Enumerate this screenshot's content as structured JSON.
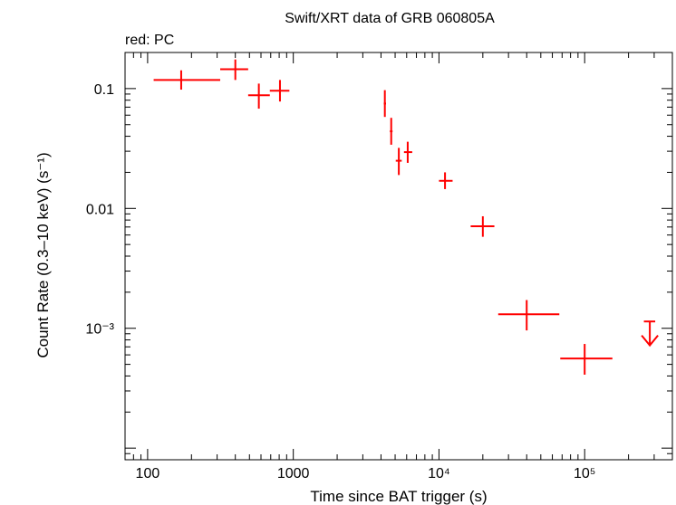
{
  "chart_data": {
    "type": "scatter",
    "title": "Swift/XRT data of GRB 060805A",
    "subtitle": "red: PC",
    "xlabel": "Time since BAT trigger (s)",
    "ylabel": "Count Rate (0.3–10 keV) (s⁻¹)",
    "xscale": "log",
    "yscale": "log",
    "xlim": [
      70,
      400000
    ],
    "ylim": [
      8e-05,
      0.2
    ],
    "x_ticks": [
      {
        "value": 100,
        "label": "100"
      },
      {
        "value": 1000,
        "label": "1000"
      },
      {
        "value": 10000,
        "label": "10⁴"
      },
      {
        "value": 100000,
        "label": "10⁵"
      }
    ],
    "y_ticks": [
      {
        "value": 0.1,
        "label": "0.1"
      },
      {
        "value": 0.01,
        "label": "0.01"
      },
      {
        "value": 0.001,
        "label": "10⁻³"
      }
    ],
    "color": "#ff0000",
    "series": [
      {
        "name": "PC",
        "points": [
          {
            "x": 170,
            "x_lo": 110,
            "x_hi": 315,
            "y": 0.118,
            "y_lo": 0.098,
            "y_hi": 0.142
          },
          {
            "x": 400,
            "x_lo": 315,
            "x_hi": 490,
            "y": 0.145,
            "y_lo": 0.118,
            "y_hi": 0.175
          },
          {
            "x": 580,
            "x_lo": 490,
            "x_hi": 690,
            "y": 0.088,
            "y_lo": 0.068,
            "y_hi": 0.11
          },
          {
            "x": 810,
            "x_lo": 690,
            "x_hi": 940,
            "y": 0.096,
            "y_lo": 0.078,
            "y_hi": 0.118
          },
          {
            "x": 4250,
            "x_lo": 4180,
            "x_hi": 4330,
            "y": 0.075,
            "y_lo": 0.058,
            "y_hi": 0.097
          },
          {
            "x": 4700,
            "x_lo": 4600,
            "x_hi": 4800,
            "y": 0.044,
            "y_lo": 0.034,
            "y_hi": 0.057
          },
          {
            "x": 5300,
            "x_lo": 5050,
            "x_hi": 5550,
            "y": 0.025,
            "y_lo": 0.019,
            "y_hi": 0.032
          },
          {
            "x": 6100,
            "x_lo": 5750,
            "x_hi": 6550,
            "y": 0.0295,
            "y_lo": 0.024,
            "y_hi": 0.036
          },
          {
            "x": 11000,
            "x_lo": 10000,
            "x_hi": 12400,
            "y": 0.017,
            "y_lo": 0.0145,
            "y_hi": 0.02
          },
          {
            "x": 20000,
            "x_lo": 16500,
            "x_hi": 24000,
            "y": 0.0071,
            "y_lo": 0.0058,
            "y_hi": 0.0086
          },
          {
            "x": 40000,
            "x_lo": 25500,
            "x_hi": 67000,
            "y": 0.00131,
            "y_lo": 0.00096,
            "y_hi": 0.00172
          },
          {
            "x": 100000,
            "x_lo": 68000,
            "x_hi": 155000,
            "y": 0.00056,
            "y_lo": 0.00041,
            "y_hi": 0.00074
          }
        ]
      }
    ],
    "upper_limits": [
      {
        "x": 280000,
        "x_lo": 255000,
        "x_hi": 305000,
        "y": 0.00114,
        "arrow_to": 0.00072
      }
    ]
  }
}
